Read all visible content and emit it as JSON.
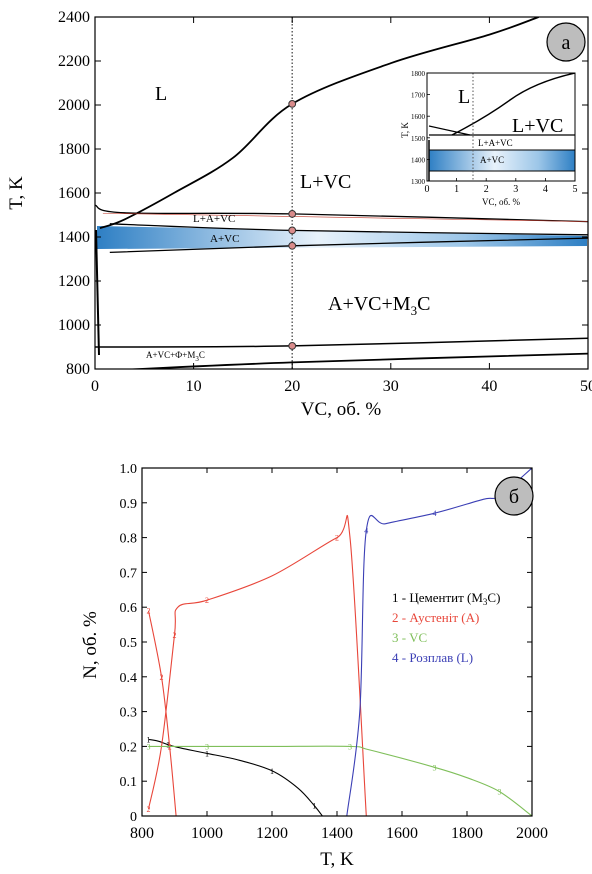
{
  "chart_data": [
    {
      "type": "line",
      "panel_label": "а",
      "xlabel": "VC, об. %",
      "ylabel": "T, K",
      "xlim": [
        0,
        50
      ],
      "ylim": [
        800,
        2400
      ],
      "x_ticks": [
        "0",
        "10",
        "20",
        "30",
        "40",
        "50"
      ],
      "y_ticks": [
        "800",
        "1000",
        "1200",
        "1400",
        "1600",
        "1800",
        "2000",
        "2200",
        "2400"
      ],
      "regions": {
        "L": "L",
        "L_VC": "L+VC",
        "L_A_VC": "L+A+VC",
        "A_VC": "A+VC",
        "A_VC_M3C": "A+VC+M",
        "A_VC_M3C_sub": "3",
        "A_VC_M3C_tail": "C",
        "A_VC_F_M3C": "A+VC+Ф+M",
        "A_VC_F_M3C_sub": "3",
        "A_VC_F_M3C_tail": "C"
      },
      "series": [
        {
          "values": [
            [
              0.5,
              1440
            ],
            [
              3,
              1480
            ],
            [
              8,
              1600
            ],
            [
              14,
              1760
            ],
            [
              20,
              2005
            ],
            [
              30,
              2190
            ],
            [
              40,
              2320
            ],
            [
              45,
              2400
            ]
          ]
        },
        {
          "values": [
            [
              0,
              1545
            ],
            [
              3,
              1510
            ],
            [
              20,
              1505
            ],
            [
              50,
              1470
            ]
          ]
        },
        {
          "values": [
            [
              1.5,
              1460
            ],
            [
              20,
              1430
            ],
            [
              50,
              1410
            ]
          ]
        },
        {
          "values": [
            [
              1.5,
              1330
            ],
            [
              20,
              1360
            ],
            [
              50,
              1395
            ]
          ]
        },
        {
          "values": [
            [
              0,
              900
            ],
            [
              20,
              905
            ],
            [
              50,
              940
            ]
          ]
        },
        {
          "values": [
            [
              0,
              790
            ],
            [
              20,
              830
            ],
            [
              50,
              870
            ]
          ]
        }
      ],
      "vertical_line_x": 20,
      "marked_points": [
        [
          20,
          2005
        ],
        [
          20,
          1505
        ],
        [
          20,
          1430
        ],
        [
          20,
          1360
        ],
        [
          20,
          905
        ]
      ],
      "inset": {
        "xlabel": "VC, об. %",
        "ylabel": "T, K",
        "xlim": [
          0,
          5
        ],
        "ylim": [
          1300,
          1800
        ],
        "x_ticks": [
          "0",
          "1",
          "2",
          "3",
          "4",
          "5"
        ],
        "y_ticks": [
          "1300",
          "1400",
          "1500",
          "1600",
          "1700",
          "1800"
        ],
        "regions": {
          "L": "L",
          "L_VC": "L+VC",
          "L_A_VC": "L+A+VC",
          "A_VC": "A+VC"
        }
      }
    },
    {
      "type": "line",
      "panel_label": "б",
      "xlabel": "T, K",
      "ylabel": "N, об. %",
      "xlim": [
        800,
        2000
      ],
      "ylim": [
        0,
        1.0
      ],
      "x_ticks": [
        "800",
        "1000",
        "1200",
        "1400",
        "1600",
        "1800",
        "2000"
      ],
      "y_ticks": [
        "0",
        "0.1",
        "0.2",
        "0.3",
        "0.4",
        "0.5",
        "0.6",
        "0.7",
        "0.8",
        "0.9",
        "1.0"
      ],
      "legend": {
        "l1a": "1 - Цементит (M",
        "l1sub": "3",
        "l1b": "C)",
        "l2": "2 - Аустеніт (А)",
        "l3": "3 - VC",
        "l4": "4 - Розплав (L)"
      },
      "colors": {
        "s1": "#000000",
        "s2": "#e8463a",
        "s3": "#7fbf5a",
        "s4": "#3b3fb5"
      },
      "series": [
        {
          "name": "1 - Цементит (M3C)",
          "marker": "1",
          "values": [
            [
              820,
              0.22
            ],
            [
              850,
              0.215
            ],
            [
              880,
              0.205
            ],
            [
              920,
              0.195
            ],
            [
              1000,
              0.18
            ],
            [
              1100,
              0.16
            ],
            [
              1200,
              0.13
            ],
            [
              1280,
              0.08
            ],
            [
              1330,
              0.03
            ],
            [
              1355,
              0
            ]
          ]
        },
        {
          "name": "2 - Аустеніт (А)",
          "marker": "2",
          "values": [
            [
              820,
              0.02
            ],
            [
              860,
              0.2
            ],
            [
              900,
              0.52
            ],
            [
              910,
              0.6
            ],
            [
              1000,
              0.62
            ],
            [
              1200,
              0.69
            ],
            [
              1400,
              0.8
            ],
            [
              1440,
              0.8
            ],
            [
              1490,
              0
            ]
          ]
        },
        {
          "name": "2 - Аустеніт (А)",
          "marker": "2",
          "values": [
            [
              820,
              0.59
            ],
            [
              860,
              0.4
            ],
            [
              885,
              0.2
            ],
            [
              905,
              0
            ]
          ]
        },
        {
          "name": "3 - VC",
          "marker": "3",
          "values": [
            [
              820,
              0.2
            ],
            [
              900,
              0.2
            ],
            [
              1000,
              0.2
            ],
            [
              1200,
              0.2
            ],
            [
              1440,
              0.2
            ],
            [
              1500,
              0.19
            ],
            [
              1700,
              0.14
            ],
            [
              1800,
              0.11
            ],
            [
              1900,
              0.07
            ],
            [
              2000,
              0
            ]
          ]
        },
        {
          "name": "4 - Розплав (L)",
          "marker": "4",
          "values": [
            [
              1430,
              0
            ],
            [
              1470,
              0.3
            ],
            [
              1490,
              0.82
            ],
            [
              1550,
              0.84
            ],
            [
              1700,
              0.87
            ],
            [
              1850,
              0.91
            ],
            [
              1900,
              0.92
            ],
            [
              2000,
              1.0
            ]
          ]
        }
      ]
    }
  ]
}
